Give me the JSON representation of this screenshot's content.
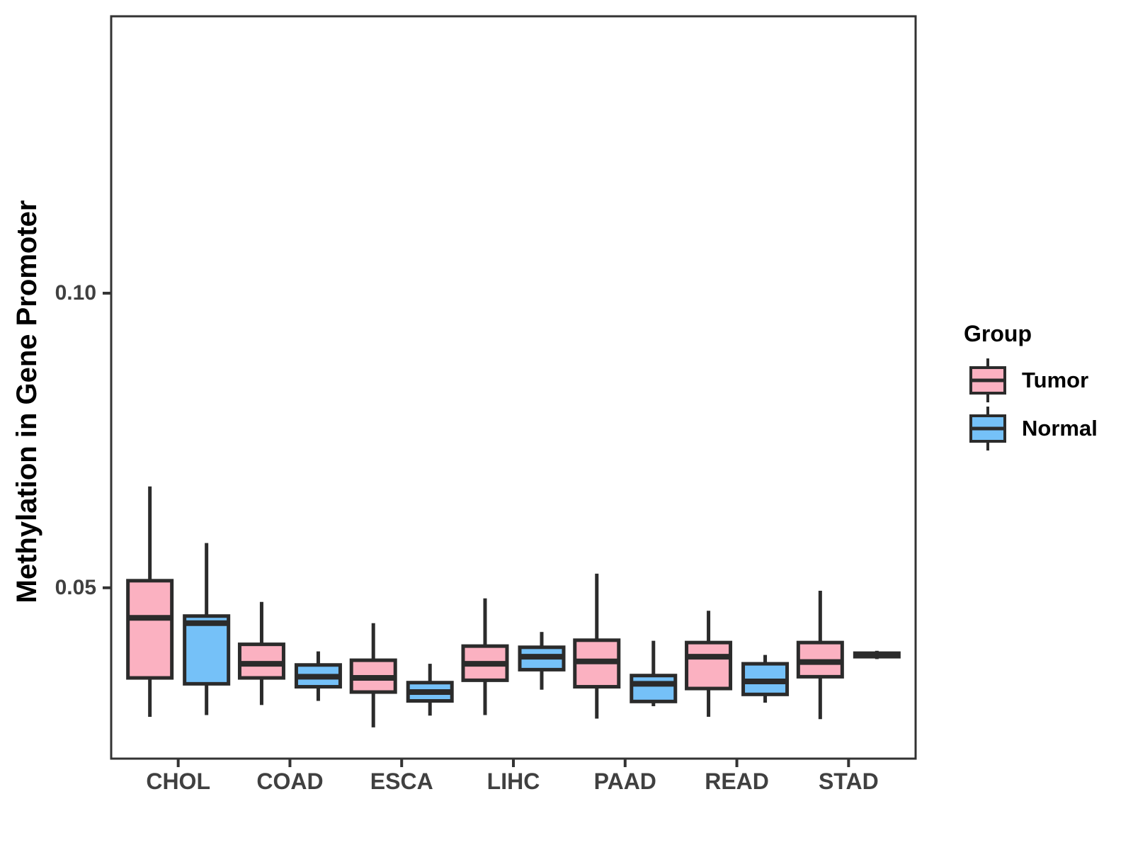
{
  "figure": {
    "y_axis_title": "Methylation in Gene Promoter",
    "legend": {
      "title": "Group",
      "entries": [
        {
          "label": "Tumor",
          "color": "#FBB1C1"
        },
        {
          "label": "Normal",
          "color": "#75C1F8"
        }
      ]
    }
  },
  "chart_data": {
    "type": "boxplot",
    "title": "",
    "xlabel": "",
    "ylabel": "Methylation in Gene Promoter",
    "categories": [
      "CHOL",
      "COAD",
      "ESCA",
      "LIHC",
      "PAAD",
      "READ",
      "STAD"
    ],
    "ylim": [
      0.021,
      0.147
    ],
    "yticks": [
      0.05,
      0.1
    ],
    "ytick_labels": [
      "0.05",
      "0.10"
    ],
    "grid": false,
    "legend_title": "Group",
    "legend_position": "right",
    "stroke_color": "#2B2B2B",
    "axis_color": "#333333",
    "series": [
      {
        "name": "Tumor",
        "color": "#FBB1C1",
        "boxes": [
          {
            "whisker_low": 0.0281,
            "q1": 0.0347,
            "median": 0.0449,
            "q3": 0.0512,
            "whisker_high": 0.0672
          },
          {
            "whisker_low": 0.0301,
            "q1": 0.0347,
            "median": 0.0371,
            "q3": 0.0404,
            "whisker_high": 0.0476
          },
          {
            "whisker_low": 0.0263,
            "q1": 0.0323,
            "median": 0.0347,
            "q3": 0.0377,
            "whisker_high": 0.044
          },
          {
            "whisker_low": 0.0284,
            "q1": 0.0343,
            "median": 0.0371,
            "q3": 0.0401,
            "whisker_high": 0.0482
          },
          {
            "whisker_low": 0.0278,
            "q1": 0.0332,
            "median": 0.0375,
            "q3": 0.0411,
            "whisker_high": 0.0524
          },
          {
            "whisker_low": 0.0281,
            "q1": 0.0329,
            "median": 0.0383,
            "q3": 0.0407,
            "whisker_high": 0.0461
          },
          {
            "whisker_low": 0.0277,
            "q1": 0.0349,
            "median": 0.0374,
            "q3": 0.0407,
            "whisker_high": 0.0495
          }
        ]
      },
      {
        "name": "Normal",
        "color": "#75C1F8",
        "boxes": [
          {
            "whisker_low": 0.0284,
            "q1": 0.0337,
            "median": 0.044,
            "q3": 0.0452,
            "whisker_high": 0.0576
          },
          {
            "whisker_low": 0.0308,
            "q1": 0.0332,
            "median": 0.0349,
            "q3": 0.0369,
            "whisker_high": 0.0392
          },
          {
            "whisker_low": 0.0283,
            "q1": 0.0308,
            "median": 0.0323,
            "q3": 0.0339,
            "whisker_high": 0.0371
          },
          {
            "whisker_low": 0.0327,
            "q1": 0.0361,
            "median": 0.0383,
            "q3": 0.0399,
            "whisker_high": 0.0425
          },
          {
            "whisker_low": 0.0299,
            "q1": 0.0307,
            "median": 0.0337,
            "q3": 0.0351,
            "whisker_high": 0.041
          },
          {
            "whisker_low": 0.0305,
            "q1": 0.0319,
            "median": 0.0341,
            "q3": 0.0371,
            "whisker_high": 0.0386
          },
          {
            "whisker_low": 0.0379,
            "q1": 0.0383,
            "median": 0.0386,
            "q3": 0.0389,
            "whisker_high": 0.0393
          }
        ]
      }
    ]
  }
}
